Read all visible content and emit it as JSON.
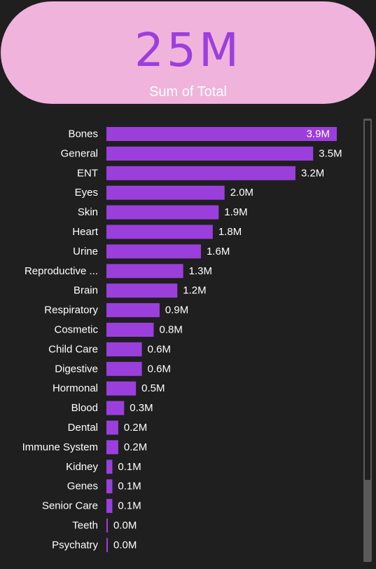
{
  "kpi": {
    "value": "25M",
    "label": "Sum of Total"
  },
  "colors": {
    "bar": "#9b3fdc",
    "card_bg": "#f0b3dc",
    "background": "#1f1f1f",
    "text": "#ffffff"
  },
  "chart_data": {
    "type": "bar",
    "orientation": "horizontal",
    "categories": [
      "Bones",
      "General",
      "ENT",
      "Eyes",
      "Skin",
      "Heart",
      "Urine",
      "Reproductive ...",
      "Brain",
      "Respiratory",
      "Cosmetic",
      "Child Care",
      "Digestive",
      "Hormonal",
      "Blood",
      "Dental",
      "Immune System",
      "Kidney",
      "Genes",
      "Senior Care",
      "Teeth",
      "Psychatry"
    ],
    "values": [
      3.9,
      3.5,
      3.2,
      2.0,
      1.9,
      1.8,
      1.6,
      1.3,
      1.2,
      0.9,
      0.8,
      0.6,
      0.6,
      0.5,
      0.3,
      0.2,
      0.2,
      0.1,
      0.1,
      0.1,
      0.0,
      0.0
    ],
    "value_labels": [
      "3.9M",
      "3.5M",
      "3.2M",
      "2.0M",
      "1.9M",
      "1.8M",
      "1.6M",
      "1.3M",
      "1.2M",
      "0.9M",
      "0.8M",
      "0.6M",
      "0.6M",
      "0.5M",
      "0.3M",
      "0.2M",
      "0.2M",
      "0.1M",
      "0.1M",
      "0.1M",
      "0.0M",
      "0.0M"
    ],
    "unit": "M",
    "xlim": [
      0,
      3.9
    ],
    "grid": false,
    "legend": "none"
  }
}
